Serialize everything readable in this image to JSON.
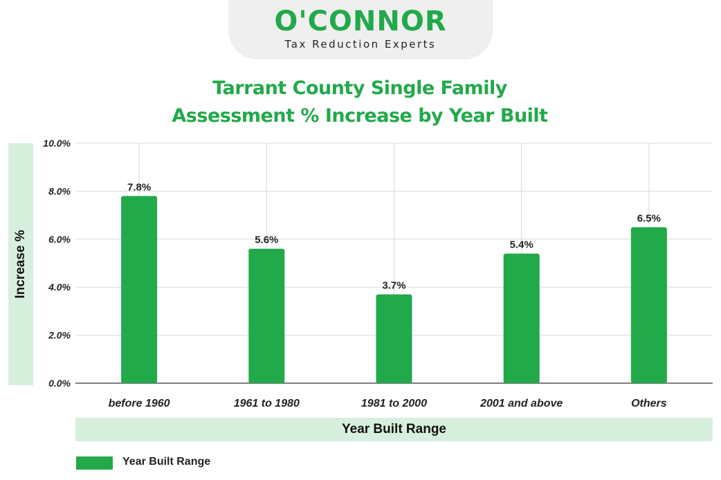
{
  "logo": {
    "name": "O'CONNOR",
    "tagline": "Tax Reduction Experts"
  },
  "colors": {
    "bar": "#22a94a",
    "title": "#22a94a",
    "band": "#d7f0dd",
    "grid": "#d9d9d9"
  },
  "chart_data": {
    "type": "bar",
    "title_lines": [
      "Tarrant County Single Family",
      "Assessment % Increase by Year Built"
    ],
    "xlabel": "Year Built Range",
    "ylabel": "Increase %",
    "categories": [
      "before 1960",
      "1961 to 1980",
      "1981 to 2000",
      "2001 and above",
      "Others"
    ],
    "series": [
      {
        "name": "Year Built Range",
        "values": [
          7.8,
          5.6,
          3.7,
          5.4,
          6.5
        ],
        "labels": [
          "7.8%",
          "5.6%",
          "3.7%",
          "5.4%",
          "6.5%"
        ]
      }
    ],
    "ylim": [
      0,
      10
    ],
    "yticks": [
      "0.0%",
      "2.0%",
      "4.0%",
      "6.0%",
      "8.0%",
      "10.0%"
    ],
    "grid": true,
    "legend": {
      "position": "bottom-left",
      "entries": [
        "Year Built Range"
      ]
    }
  }
}
